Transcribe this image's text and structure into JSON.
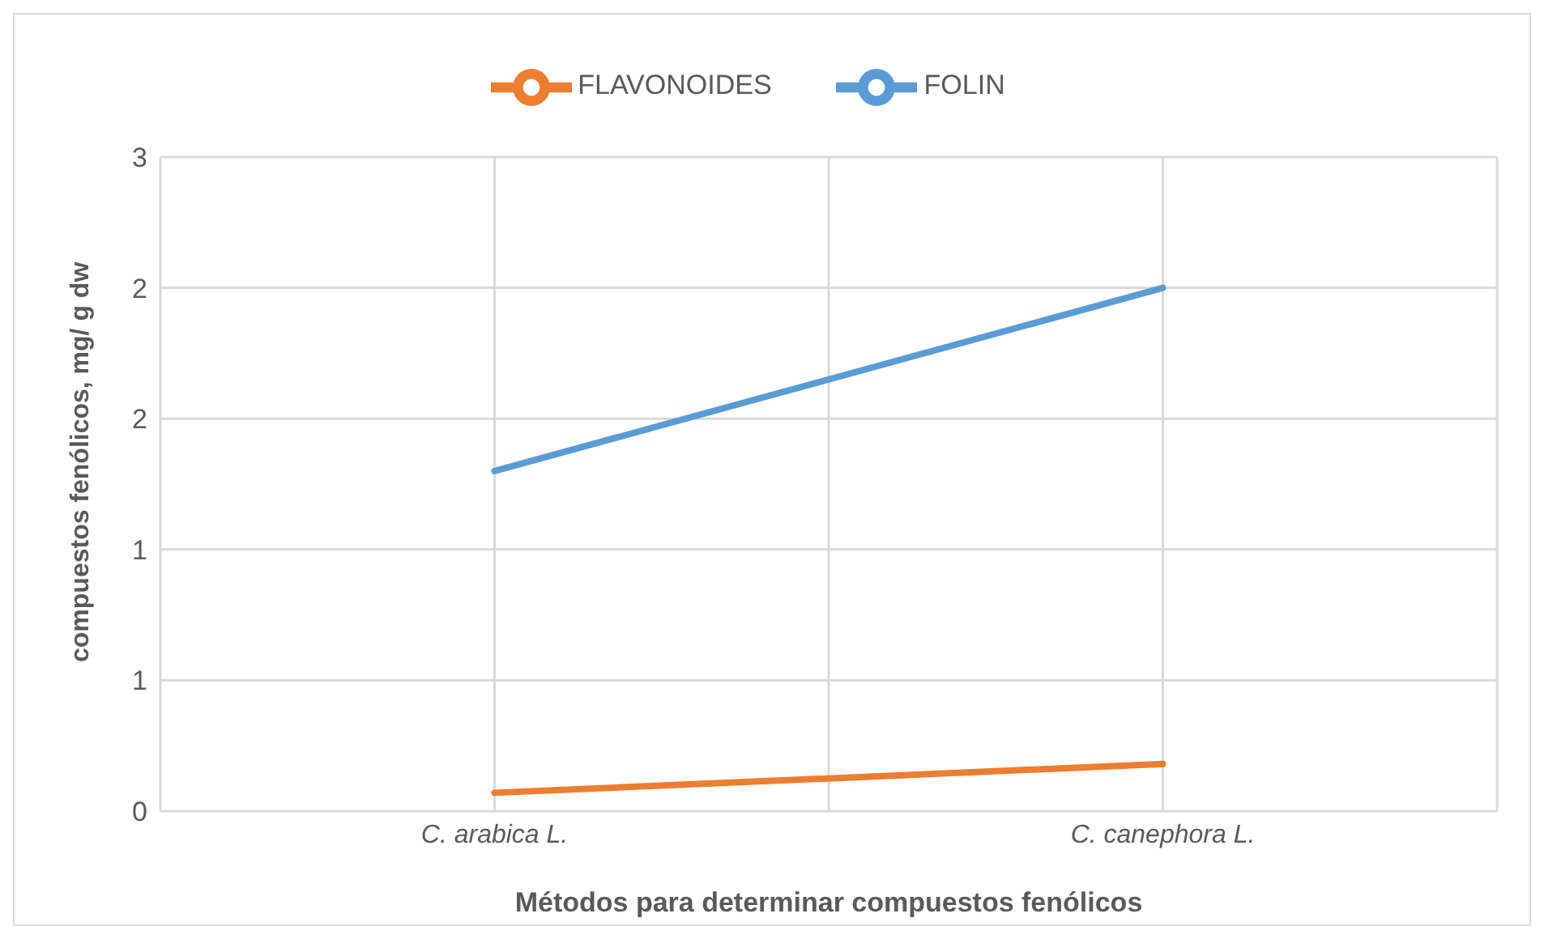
{
  "chart_data": {
    "type": "line",
    "xlabel": "Métodos para determinar compuestos fenólicos",
    "ylabel": "compuestos fenólicos, mg/ g dw",
    "categories": [
      "C. arabica L.",
      "C. canephora L."
    ],
    "series": [
      {
        "name": "FOLIN",
        "color": "#5b9bd5",
        "values": [
          1.3,
          2.0
        ]
      },
      {
        "name": "FLAVONOIDES",
        "color": "#ed7d31",
        "values": [
          0.07,
          0.18
        ]
      }
    ],
    "ylim": [
      0,
      2.5
    ],
    "yticks": [
      0,
      {
        "value": 0.5,
        "label": "1"
      },
      1,
      {
        "value": 1.5,
        "label": "2"
      },
      2,
      {
        "value": 2.5,
        "label": "3"
      }
    ],
    "grid": true,
    "legend": "top",
    "marker": "none",
    "line_style": "solid"
  }
}
